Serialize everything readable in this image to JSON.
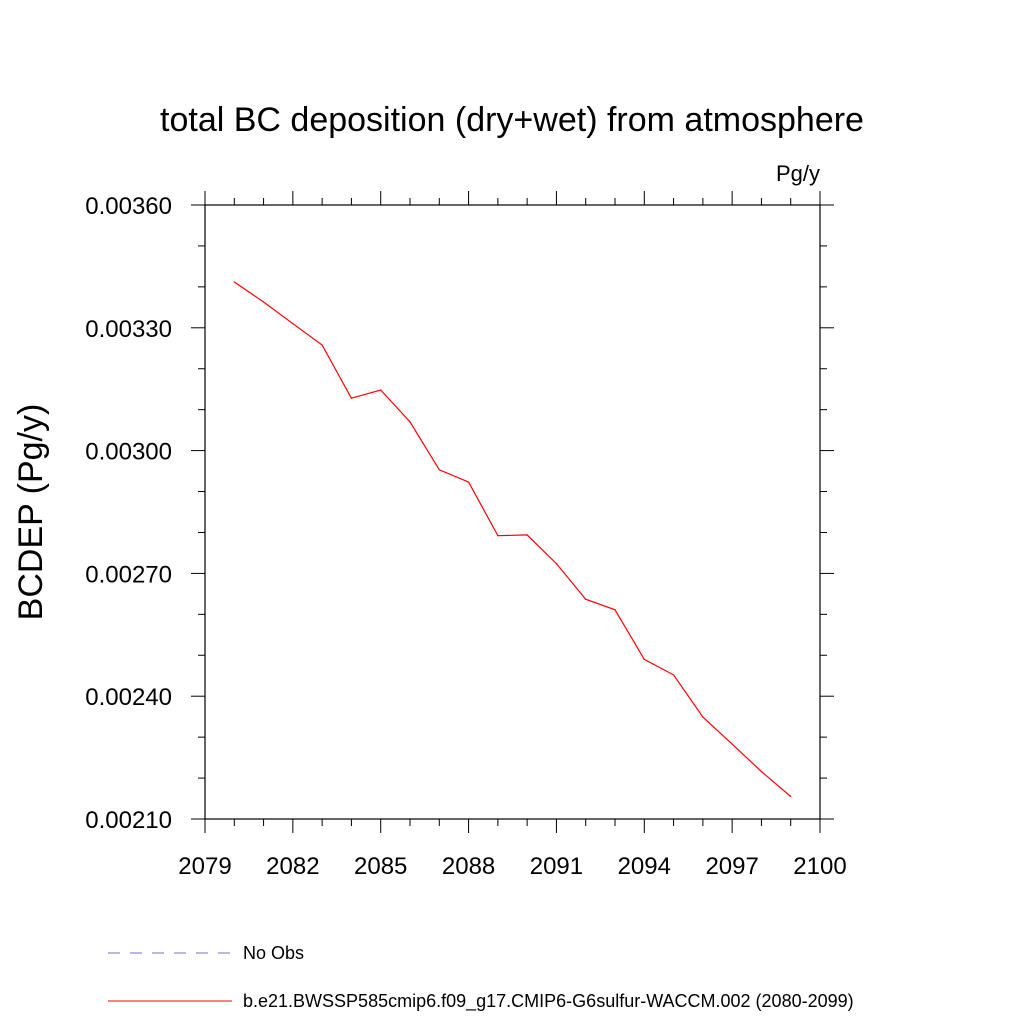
{
  "chart_data": {
    "type": "line",
    "title": "total BC deposition (dry+wet) from atmosphere",
    "units": "Pg/y",
    "ylabel": "BCDEP  (Pg/y)",
    "xlabel": "",
    "xlim": [
      2079,
      2100
    ],
    "ylim": [
      0.0021,
      0.0036
    ],
    "xticks": [
      "2079",
      "2082",
      "2085",
      "2088",
      "2091",
      "2094",
      "2097",
      "2100"
    ],
    "yticks": [
      "0.00210",
      "0.00240",
      "0.00270",
      "0.00300",
      "0.00330",
      "0.00360"
    ],
    "grid": false,
    "legend_placement": "bottom",
    "series": [
      {
        "name": "b.e21.BWSSP585cmip6.f09_g17.CMIP6-G6sulfur-WACCM.002 (2080-2099)",
        "color": "#ff0000",
        "style": "solid",
        "x": [
          2080,
          2081,
          2082,
          2083,
          2084,
          2085,
          2086,
          2087,
          2088,
          2089,
          2090,
          2091,
          2092,
          2093,
          2094,
          2095,
          2096,
          2097,
          2098,
          2099
        ],
        "values": [
          0.003412,
          0.003363,
          0.00331,
          0.003258,
          0.003128,
          0.003148,
          0.00307,
          0.002953,
          0.002923,
          0.002792,
          0.002794,
          0.002724,
          0.002637,
          0.002611,
          0.00249,
          0.002452,
          0.002349,
          0.002283,
          0.002216,
          0.002155
        ]
      }
    ],
    "legend": [
      {
        "label": "No Obs",
        "color": "#7a6cc8",
        "style": "dashed"
      },
      {
        "label": "b.e21.BWSSP585cmip6.f09_g17.CMIP6-G6sulfur-WACCM.002 (2080-2099)",
        "color": "#ff0000",
        "style": "solid"
      }
    ]
  }
}
